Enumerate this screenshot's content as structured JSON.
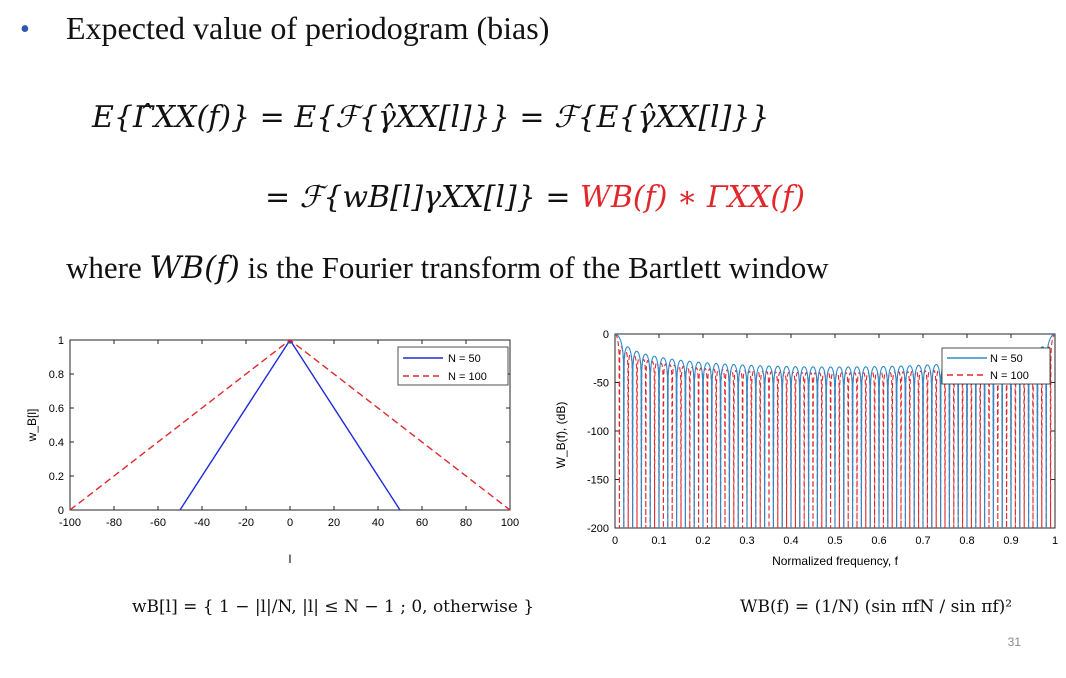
{
  "slide": {
    "bullet": "•",
    "title": "Expected value of periodogram (bias)",
    "eq_line1": "E{Γ̂XX(f)} = E{ℱ{γ̂XX[l]}} = ℱ{E{γ̂XX[l]}}",
    "eq_line2_black": "= ℱ{wB[l]γXX[l]} = ",
    "eq_line2_red": "WB(f) ∗ ΓXX(f)",
    "where_pre": "where",
    "where_math": "WB(f)",
    "where_post": "is the Fourier transform of the Bartlett window",
    "page_number": "31",
    "formula_left": "wB[l] = { 1 − |l|/N,  |l| ≤ N − 1 ;  0,  otherwise }",
    "formula_right": "WB(f) = (1/N) (sin πfN / sin πf)²"
  },
  "chart_data": [
    {
      "type": "line",
      "xlabel": "l",
      "ylabel": "w_B[l]",
      "xlim": [
        -100,
        100
      ],
      "ylim": [
        0,
        1
      ],
      "xticks": [
        -100,
        -80,
        -60,
        -40,
        -20,
        0,
        20,
        40,
        60,
        80,
        100
      ],
      "yticks": [
        0,
        0.2,
        0.4,
        0.6,
        0.8,
        1
      ],
      "legend_position": "top-right",
      "series": [
        {
          "name": "N = 50",
          "color": "#1f2bd6",
          "style": "solid",
          "x": [
            -50,
            0,
            50
          ],
          "y": [
            0,
            1,
            0
          ]
        },
        {
          "name": "N = 100",
          "color": "#e0282c",
          "style": "dashed",
          "x": [
            -100,
            0,
            100
          ],
          "y": [
            0,
            1,
            0
          ]
        }
      ]
    },
    {
      "type": "line",
      "xlabel": "Normalized frequency, f",
      "ylabel": "W_B(f), (dB)",
      "xlim": [
        0,
        1
      ],
      "ylim": [
        -200,
        0
      ],
      "xticks": [
        0,
        0.1,
        0.2,
        0.3,
        0.4,
        0.5,
        0.6,
        0.7,
        0.8,
        0.9,
        1
      ],
      "yticks": [
        -200,
        -150,
        -100,
        -50,
        0
      ],
      "legend_position": "top-right",
      "series": [
        {
          "name": "N = 50",
          "color": "#2e8bc9",
          "style": "solid",
          "N": 50
        },
        {
          "name": "N = 100",
          "color": "#e0282c",
          "style": "dashed",
          "N": 100
        }
      ]
    }
  ]
}
